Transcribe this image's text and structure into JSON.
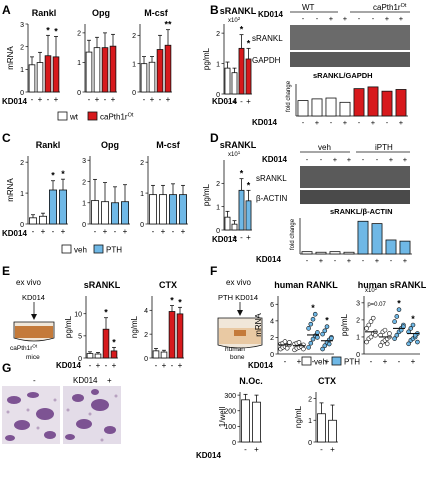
{
  "colors": {
    "red": "#d7191c",
    "blue": "#6fb8e6",
    "white": "#ffffff",
    "black": "#111111",
    "wb_bg": "#3a3a3a"
  },
  "panels": {
    "A": {
      "letter": "A",
      "legend": {
        "wt": "wt",
        "ca": "caPth1r",
        "ca_sup": "Ot"
      },
      "kd_label": "KD014",
      "charts": [
        {
          "title": "Rankl",
          "ylabel": "mRNA",
          "yticks": [
            "0",
            "1",
            "2",
            "3"
          ],
          "stars": [
            "*",
            "*"
          ]
        },
        {
          "title": "Opg",
          "ylabel": "",
          "yticks": [
            "0",
            "1",
            "2"
          ],
          "stars": []
        },
        {
          "title": "M-csf",
          "ylabel": "",
          "yticks": [
            "0",
            "1",
            "2"
          ],
          "stars": [
            "**"
          ]
        }
      ]
    },
    "B": {
      "letter": "B",
      "chart_title": "sRANKL",
      "ylabel": "pg/mL",
      "yunit": "x10",
      "yunit_sup": "2",
      "yticks": [
        "0",
        "1",
        "2"
      ],
      "stars": [
        "*",
        "*"
      ],
      "kd_label": "KD014",
      "wb": {
        "group_left": "WT",
        "group_right": "caPth1r",
        "group_right_sup": "Ot",
        "kd_label": "KD014",
        "row1": "sRANKL",
        "row2": "GAPDH",
        "ratio_title": "sRANKL/GAPDH",
        "fold_label": "fold change",
        "kd_label_bottom": "KD014"
      }
    },
    "C": {
      "letter": "C",
      "legend": {
        "veh": "veh",
        "pth": "PTH"
      },
      "kd_label": "KD014",
      "charts": [
        {
          "title": "Rankl",
          "ylabel": "mRNA",
          "yticks": [
            "0",
            "1",
            "2"
          ],
          "stars": [
            "*",
            "*"
          ]
        },
        {
          "title": "Opg",
          "ylabel": "",
          "yticks": [
            "0",
            "1",
            "2",
            "3"
          ],
          "stars": []
        },
        {
          "title": "M-csf",
          "ylabel": "",
          "yticks": [
            "0",
            "1",
            "2"
          ],
          "stars": []
        }
      ]
    },
    "D": {
      "letter": "D",
      "chart_title": "sRANKL",
      "ylabel": "pg/mL",
      "yunit": "x10",
      "yunit_sup": "1",
      "yticks": [
        "0",
        "1",
        "2"
      ],
      "stars": [
        "*",
        "*"
      ],
      "kd_label": "KD014",
      "wb": {
        "group_left": "veh",
        "group_right": "iPTH",
        "kd_label": "KD014",
        "row1": "sRANKL",
        "row2": "β-ACTIN",
        "ratio_title": "sRANKL/β-ACTIN",
        "fold_label": "fold change",
        "kd_label_bottom": "KD014"
      }
    },
    "E": {
      "letter": "E",
      "context": "ex vivo",
      "dish_top": "KD014",
      "dish_bottom": "caPth1r",
      "dish_bottom_sup": "Ot",
      "dish_bottom2": "mice",
      "kd_label": "KD014",
      "charts": [
        {
          "title": "sRANKL",
          "ylabel": "pg/mL",
          "yticks": [
            "0",
            "5",
            "10"
          ],
          "stars": [
            "*",
            "*"
          ]
        },
        {
          "title": "CTX",
          "ylabel": "ng/mL",
          "yticks": [
            "0",
            "2",
            "4"
          ],
          "stars": [
            "*",
            "*"
          ]
        }
      ]
    },
    "F": {
      "letter": "F",
      "context": "ex vivo",
      "dish_top": "PTH  KD014",
      "dish_bottom": "human",
      "dish_bottom2": "bone",
      "kd_label": "KD014",
      "legend": {
        "veh": "veh",
        "pth": "PTH"
      },
      "charts": [
        {
          "title": "human RANKL",
          "ylabel": "mRNA",
          "yticks": [
            "0",
            "2",
            "4",
            "6"
          ],
          "stars": [
            "*",
            "*"
          ]
        },
        {
          "title": "human sRANKL",
          "ylabel": "pg/mL",
          "yunit": "x10",
          "yunit_sup": "2",
          "yticks": [
            "0",
            "1",
            "2",
            "3"
          ],
          "stars": [
            "*",
            "*"
          ],
          "pval": "p=0.07"
        }
      ]
    },
    "G": {
      "letter": "G",
      "img_label_minus": "-",
      "img_label_kd": "KD014",
      "img_label_plus": "+",
      "kd_label": "KD014",
      "charts": [
        {
          "title": "N.Oc.",
          "ylabel": "1/well",
          "yticks": [
            "0",
            "100",
            "200",
            "300"
          ]
        },
        {
          "title": "CTX",
          "ylabel": "ng/mL",
          "yticks": [
            "0",
            "1",
            "2"
          ]
        }
      ]
    }
  },
  "chart_data": [
    {
      "panel": "A",
      "type": "bar",
      "title": "Rankl",
      "ylabel": "mRNA",
      "ylim": [
        0,
        3
      ],
      "categories": [
        "wt -",
        "wt +",
        "caPth1rOt -",
        "caPth1rOt +"
      ],
      "values": [
        1.2,
        1.3,
        1.6,
        1.55
      ],
      "errors": [
        0.35,
        0.45,
        0.9,
        0.9
      ],
      "colors": [
        "white",
        "white",
        "red",
        "red"
      ]
    },
    {
      "panel": "A",
      "type": "bar",
      "title": "Opg",
      "ylim": [
        0,
        2.3
      ],
      "categories": [
        "wt -",
        "wt +",
        "caPth1rOt -",
        "caPth1rOt +"
      ],
      "values": [
        1.35,
        1.5,
        1.5,
        1.55
      ],
      "errors": [
        0.4,
        0.35,
        0.5,
        0.4
      ],
      "colors": [
        "white",
        "white",
        "red",
        "red"
      ]
    },
    {
      "panel": "A",
      "type": "bar",
      "title": "M-csf",
      "ylim": [
        0,
        2.4
      ],
      "categories": [
        "wt -",
        "wt +",
        "caPth1rOt -",
        "caPth1rOt +"
      ],
      "values": [
        1.0,
        1.05,
        1.5,
        1.65
      ],
      "errors": [
        0.25,
        0.2,
        0.5,
        0.55
      ],
      "colors": [
        "white",
        "white",
        "red",
        "red"
      ]
    },
    {
      "panel": "B",
      "type": "bar",
      "title": "sRANKL",
      "ylabel": "pg/mL",
      "ylim": [
        0,
        2.3
      ],
      "categories": [
        "wt -",
        "wt +",
        "caPth1rOt -",
        "caPth1rOt +"
      ],
      "values": [
        0.85,
        0.7,
        1.5,
        1.15
      ],
      "errors": [
        0.2,
        0.15,
        0.45,
        0.35
      ],
      "colors": [
        "white",
        "white",
        "red",
        "red"
      ]
    },
    {
      "panel": "B-wb",
      "type": "bar",
      "title": "sRANKL/GAPDH",
      "categories": [
        "WT -",
        "WT -",
        "WT +",
        "WT +",
        "caPth1rOt -",
        "caPth1rOt -",
        "caPth1rOt +",
        "caPth1rOt +"
      ],
      "values": [
        0.9,
        1.0,
        1.05,
        0.8,
        1.6,
        1.7,
        1.45,
        1.55
      ],
      "colors": [
        "white",
        "white",
        "white",
        "white",
        "red",
        "red",
        "red",
        "red"
      ]
    },
    {
      "panel": "C",
      "type": "bar",
      "title": "Rankl",
      "ylabel": "mRNA",
      "ylim": [
        0,
        2.2
      ],
      "categories": [
        "veh -",
        "veh +",
        "PTH -",
        "PTH +"
      ],
      "values": [
        0.2,
        0.25,
        1.1,
        1.1
      ],
      "errors": [
        0.1,
        0.1,
        0.3,
        0.35
      ],
      "colors": [
        "white",
        "white",
        "blue",
        "blue"
      ]
    },
    {
      "panel": "C",
      "type": "bar",
      "title": "Opg",
      "ylim": [
        0,
        3.2
      ],
      "categories": [
        "veh -",
        "veh +",
        "PTH -",
        "PTH +"
      ],
      "values": [
        1.1,
        1.05,
        1.0,
        1.05
      ],
      "errors": [
        1.0,
        0.9,
        0.75,
        0.8
      ],
      "colors": [
        "white",
        "white",
        "blue",
        "blue"
      ]
    },
    {
      "panel": "C",
      "type": "bar",
      "title": "M-csf",
      "ylim": [
        0,
        2.2
      ],
      "categories": [
        "veh -",
        "veh +",
        "PTH -",
        "PTH +"
      ],
      "values": [
        0.95,
        0.95,
        0.95,
        0.95
      ],
      "errors": [
        0.3,
        0.3,
        0.35,
        0.3
      ],
      "colors": [
        "white",
        "white",
        "blue",
        "blue"
      ]
    },
    {
      "panel": "D",
      "type": "bar",
      "title": "sRANKL",
      "ylabel": "pg/mL",
      "ylim": [
        0,
        3
      ],
      "categories": [
        "veh -",
        "veh +",
        "PTH -",
        "PTH +"
      ],
      "values": [
        0.55,
        0.25,
        1.7,
        1.25
      ],
      "errors": [
        0.25,
        0.15,
        0.5,
        0.45
      ],
      "colors": [
        "white",
        "white",
        "blue",
        "blue"
      ]
    },
    {
      "panel": "D-wb",
      "type": "bar",
      "title": "sRANKL/β-ACTIN",
      "categories": [
        "veh -",
        "veh -",
        "veh +",
        "veh +",
        "iPTH -",
        "iPTH -",
        "iPTH +",
        "iPTH +"
      ],
      "values": [
        0.2,
        0.15,
        0.2,
        0.15,
        2.8,
        2.6,
        1.2,
        1.1
      ],
      "colors": [
        "white",
        "white",
        "white",
        "white",
        "blue",
        "blue",
        "blue",
        "blue"
      ]
    },
    {
      "panel": "E",
      "type": "bar",
      "title": "sRANKL",
      "ylabel": "pg/mL",
      "ylim": [
        0,
        14
      ],
      "categories": [
        "wt -",
        "wt +",
        "caPth1rOt -",
        "caPth1rOt +"
      ],
      "values": [
        1.0,
        0.9,
        6.5,
        1.6
      ],
      "errors": [
        0.4,
        0.35,
        2.6,
        0.8
      ],
      "colors": [
        "white",
        "white",
        "red",
        "red"
      ]
    },
    {
      "panel": "E",
      "type": "bar",
      "title": "CTX",
      "ylabel": "ng/mL",
      "ylim": [
        0,
        5.2
      ],
      "categories": [
        "wt -",
        "wt +",
        "caPth1rOt -",
        "caPth1rOt +"
      ],
      "values": [
        0.6,
        0.5,
        3.9,
        3.7
      ],
      "errors": [
        0.2,
        0.15,
        0.5,
        0.55
      ],
      "colors": [
        "white",
        "white",
        "red",
        "red"
      ]
    },
    {
      "panel": "F",
      "type": "scatter",
      "title": "human RANKL",
      "ylabel": "mRNA",
      "ylim": [
        0,
        7
      ],
      "groups": [
        {
          "name": "veh -",
          "color": "white",
          "mean": 1.1,
          "points": [
            0.6,
            0.8,
            0.9,
            1.0,
            1.1,
            1.2,
            1.3,
            1.5,
            0.7,
            1.4
          ]
        },
        {
          "name": "veh +",
          "color": "white",
          "mean": 1.0,
          "points": [
            0.5,
            0.7,
            0.8,
            1.0,
            1.1,
            1.2,
            1.3,
            1.4,
            0.9,
            0.6
          ]
        },
        {
          "name": "PTH -",
          "color": "blue",
          "mean": 2.3,
          "points": [
            0.8,
            1.3,
            1.8,
            2.2,
            2.6,
            3.1,
            3.6,
            4.2,
            4.8,
            2.0
          ]
        },
        {
          "name": "PTH +",
          "color": "blue",
          "mean": 1.6,
          "points": [
            0.6,
            1.0,
            1.4,
            1.7,
            2.0,
            2.4,
            2.8,
            3.3,
            1.2,
            1.9
          ]
        }
      ]
    },
    {
      "panel": "F",
      "type": "scatter",
      "title": "human sRANKL",
      "ylabel": "pg/mL",
      "ylim": [
        0,
        3.4
      ],
      "groups": [
        {
          "name": "veh -",
          "color": "white",
          "mean": 1.3,
          "points": [
            0.7,
            0.9,
            1.0,
            1.2,
            1.3,
            1.5,
            1.7,
            1.9,
            2.1,
            1.1
          ]
        },
        {
          "name": "veh +",
          "color": "white",
          "mean": 1.0,
          "points": [
            0.5,
            0.7,
            0.8,
            0.9,
            1.0,
            1.1,
            1.3,
            1.4,
            0.6,
            1.2
          ]
        },
        {
          "name": "PTH -",
          "color": "blue",
          "mean": 1.5,
          "points": [
            0.9,
            1.1,
            1.3,
            1.5,
            1.7,
            1.9,
            2.2,
            2.6,
            1.4,
            1.6
          ]
        },
        {
          "name": "PTH +",
          "color": "blue",
          "mean": 1.2,
          "points": [
            0.6,
            0.8,
            0.9,
            1.0,
            1.2,
            1.3,
            1.5,
            1.7,
            1.1,
            0.7
          ]
        }
      ]
    },
    {
      "panel": "G",
      "type": "bar",
      "title": "N.Oc.",
      "ylabel": "1/well",
      "ylim": [
        0,
        320
      ],
      "categories": [
        "-",
        "+"
      ],
      "values": [
        270,
        255
      ],
      "errors": [
        35,
        45
      ],
      "colors": [
        "white",
        "white"
      ]
    },
    {
      "panel": "G",
      "type": "bar",
      "title": "CTX",
      "ylabel": "ng/mL",
      "ylim": [
        0,
        2.3
      ],
      "categories": [
        "-",
        "+"
      ],
      "values": [
        1.3,
        1.0
      ],
      "errors": [
        0.5,
        0.7
      ],
      "colors": [
        "white",
        "white"
      ]
    }
  ]
}
